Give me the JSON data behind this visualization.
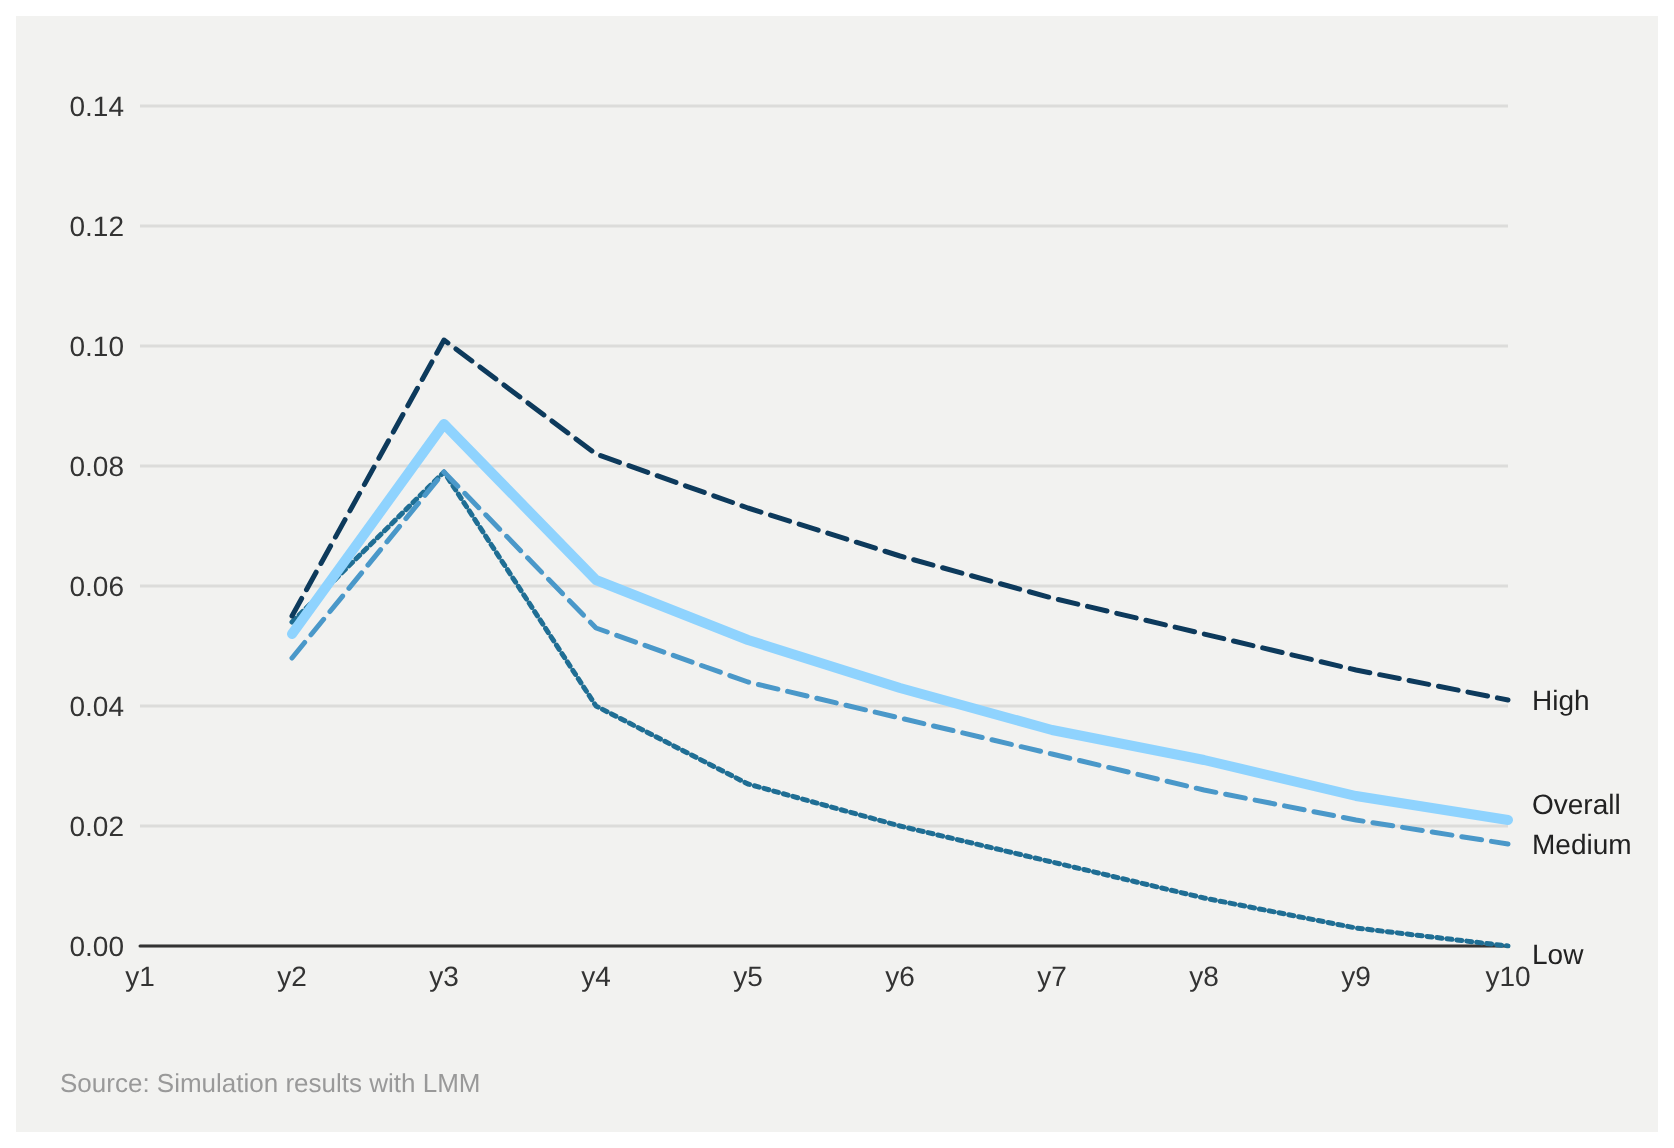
{
  "chart_data": {
    "type": "line",
    "categories": [
      "y1",
      "y2",
      "y3",
      "y4",
      "y5",
      "y6",
      "y7",
      "y8",
      "y9",
      "y10"
    ],
    "series": [
      {
        "name": "High",
        "color": "#0d3a5c",
        "line_style": "dashed",
        "values": [
          null,
          0.055,
          0.101,
          0.082,
          0.073,
          0.065,
          0.058,
          0.052,
          0.046,
          0.041
        ]
      },
      {
        "name": "Overall",
        "color": "#8fd3fe",
        "line_style": "solid",
        "values": [
          null,
          0.052,
          0.087,
          0.061,
          0.051,
          0.043,
          0.036,
          0.031,
          0.025,
          0.021
        ]
      },
      {
        "name": "Medium",
        "color": "#4a98c9",
        "line_style": "dashed",
        "values": [
          null,
          0.048,
          0.079,
          0.053,
          0.044,
          0.038,
          0.032,
          0.026,
          0.021,
          0.017
        ]
      },
      {
        "name": "Low",
        "color": "#1f6e94",
        "line_style": "dotted",
        "values": [
          null,
          0.054,
          0.079,
          0.04,
          0.027,
          0.02,
          0.014,
          0.008,
          0.003,
          0.0
        ]
      }
    ],
    "ylim": [
      0,
      0.14
    ],
    "yticks": [
      {
        "value": 0,
        "label": "0.00"
      },
      0.02,
      0.04,
      0.06,
      0.08,
      {
        "value": 0.1,
        "label": "0.10"
      },
      0.12,
      0.14
    ],
    "grid": "y",
    "legend": false,
    "marker": "none",
    "annotations": [
      "Source: Simulation results with LMM"
    ]
  }
}
